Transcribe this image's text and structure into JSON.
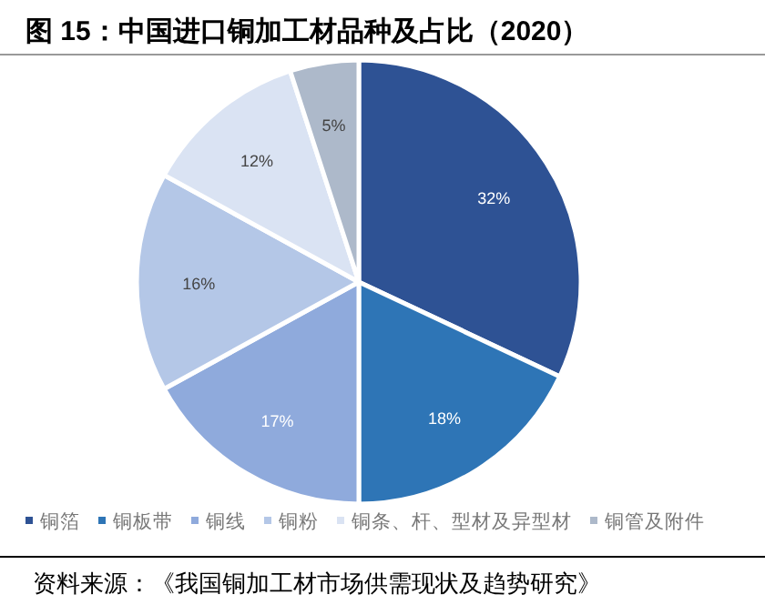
{
  "chart_data": {
    "type": "pie",
    "title": "图 15：中国进口铜加工材品种及占比（2020）",
    "categories": [
      "铜箔",
      "铜板带",
      "铜线",
      "铜粉",
      "铜条、杆、型材及异型材",
      "铜管及附件"
    ],
    "values": [
      32,
      18,
      17,
      16,
      12,
      5
    ],
    "colors": [
      "#2e5294",
      "#2e75b6",
      "#8faadc",
      "#b4c7e7",
      "#dae3f3",
      "#adb9ca"
    ],
    "value_labels": [
      "32%",
      "18%",
      "17%",
      "16%",
      "12%",
      "5%"
    ],
    "legend": "bottom",
    "annotations": [
      "资料来源：《我国铜加工材市场供需现状及趋势研究》"
    ]
  }
}
